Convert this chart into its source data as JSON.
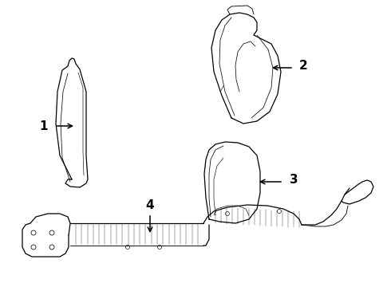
{
  "background_color": "#ffffff",
  "line_color": "#000000",
  "figsize": [
    4.9,
    3.6
  ],
  "dpi": 100,
  "lw": 0.9
}
